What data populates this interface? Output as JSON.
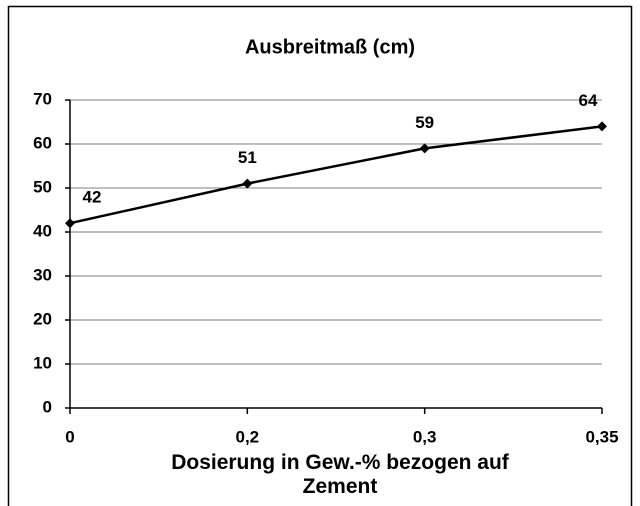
{
  "chart_data": {
    "type": "line",
    "title": "Ausbreitmaß (cm)",
    "x_label": "Dosierung in Gew.-% bezogen auf Zement",
    "categories": [
      "0",
      "0,2",
      "0,3",
      "0,35"
    ],
    "series": [
      {
        "name": "Ausbreitmaß",
        "color": "#000000",
        "values": [
          42,
          51,
          59,
          64
        ]
      }
    ],
    "ylim": [
      0,
      70
    ],
    "yticks": [
      0,
      10,
      20,
      30,
      40,
      50,
      60,
      70
    ],
    "grid": true
  }
}
